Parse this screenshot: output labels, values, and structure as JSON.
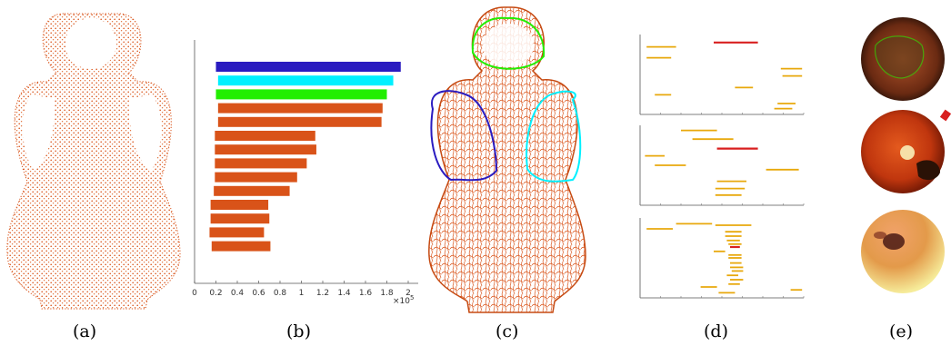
{
  "figure": {
    "captions": [
      "(a)",
      "(b)",
      "(c)",
      "(d)",
      "(e)"
    ]
  },
  "colors": {
    "accent_orange": "#d95319",
    "cluster_blue": "#2a1bc0",
    "cluster_cyan": "#00f0ff",
    "cluster_green": "#22ee00",
    "interval_yellow": "#e8a80c",
    "interval_red": "#d81f1f"
  },
  "chart_data": {
    "type": "bar",
    "orientation": "horizontal",
    "x_ticks": [
      "0",
      "0.2",
      "0.4",
      "0.6",
      "0.8",
      "1",
      "1.2",
      "1.4",
      "1.6",
      "1.8",
      "2"
    ],
    "x_multiplier": "×10",
    "x_multiplier_exp": "5",
    "xlim": [
      0,
      200000
    ],
    "bars": [
      {
        "start": 20000,
        "end": 193000,
        "color": "#2a1bc0"
      },
      {
        "start": 22000,
        "end": 186000,
        "color": "#00f0ff"
      },
      {
        "start": 20000,
        "end": 180000,
        "color": "#22ee00"
      },
      {
        "start": 22000,
        "end": 176000,
        "color": "#d95319"
      },
      {
        "start": 22000,
        "end": 175000,
        "color": "#d95319"
      },
      {
        "start": 19000,
        "end": 113000,
        "color": "#d95319"
      },
      {
        "start": 19000,
        "end": 114000,
        "color": "#d95319"
      },
      {
        "start": 19000,
        "end": 105000,
        "color": "#d95319"
      },
      {
        "start": 19000,
        "end": 96000,
        "color": "#d95319"
      },
      {
        "start": 18000,
        "end": 89000,
        "color": "#d95319"
      },
      {
        "start": 15000,
        "end": 69000,
        "color": "#d95319"
      },
      {
        "start": 15000,
        "end": 70000,
        "color": "#d95319"
      },
      {
        "start": 14000,
        "end": 65000,
        "color": "#d95319"
      },
      {
        "start": 16000,
        "end": 71000,
        "color": "#d95319"
      }
    ]
  },
  "panel_d": {
    "xlim": [
      0,
      1
    ],
    "plots": [
      {
        "intervals": [
          {
            "y": 0.06,
            "x0": 0.45,
            "x1": 0.72,
            "red": true
          },
          {
            "y": 0.12,
            "x0": 0.04,
            "x1": 0.22
          },
          {
            "y": 0.27,
            "x0": 0.04,
            "x1": 0.19
          },
          {
            "y": 0.42,
            "x0": 0.86,
            "x1": 0.99
          },
          {
            "y": 0.52,
            "x0": 0.87,
            "x1": 0.99
          },
          {
            "y": 0.68,
            "x0": 0.58,
            "x1": 0.69
          },
          {
            "y": 0.78,
            "x0": 0.09,
            "x1": 0.19
          },
          {
            "y": 0.9,
            "x0": 0.84,
            "x1": 0.95
          },
          {
            "y": 0.97,
            "x0": 0.82,
            "x1": 0.93
          }
        ]
      },
      {
        "intervals": [
          {
            "y": 0.02,
            "x0": 0.25,
            "x1": 0.47
          },
          {
            "y": 0.14,
            "x0": 0.32,
            "x1": 0.57
          },
          {
            "y": 0.27,
            "x0": 0.47,
            "x1": 0.72,
            "red": true
          },
          {
            "y": 0.37,
            "x0": 0.03,
            "x1": 0.15
          },
          {
            "y": 0.5,
            "x0": 0.09,
            "x1": 0.28
          },
          {
            "y": 0.56,
            "x0": 0.77,
            "x1": 0.97
          },
          {
            "y": 0.72,
            "x0": 0.47,
            "x1": 0.65
          },
          {
            "y": 0.82,
            "x0": 0.46,
            "x1": 0.64
          },
          {
            "y": 0.91,
            "x0": 0.46,
            "x1": 0.62
          }
        ]
      },
      {
        "intervals": [
          {
            "y": 0.03,
            "x0": 0.22,
            "x1": 0.44
          },
          {
            "y": 0.05,
            "x0": 0.46,
            "x1": 0.68
          },
          {
            "y": 0.1,
            "x0": 0.04,
            "x1": 0.2
          },
          {
            "y": 0.14,
            "x0": 0.52,
            "x1": 0.62
          },
          {
            "y": 0.2,
            "x0": 0.52,
            "x1": 0.62
          },
          {
            "y": 0.26,
            "x0": 0.53,
            "x1": 0.61
          },
          {
            "y": 0.31,
            "x0": 0.54,
            "x1": 0.62
          },
          {
            "y": 0.35,
            "x0": 0.55,
            "x1": 0.61,
            "red": true
          },
          {
            "y": 0.41,
            "x0": 0.45,
            "x1": 0.52
          },
          {
            "y": 0.46,
            "x0": 0.54,
            "x1": 0.62
          },
          {
            "y": 0.5,
            "x0": 0.54,
            "x1": 0.62
          },
          {
            "y": 0.57,
            "x0": 0.55,
            "x1": 0.62
          },
          {
            "y": 0.63,
            "x0": 0.55,
            "x1": 0.63
          },
          {
            "y": 0.68,
            "x0": 0.56,
            "x1": 0.63
          },
          {
            "y": 0.74,
            "x0": 0.53,
            "x1": 0.6
          },
          {
            "y": 0.8,
            "x0": 0.55,
            "x1": 0.63
          },
          {
            "y": 0.86,
            "x0": 0.54,
            "x1": 0.61
          },
          {
            "y": 0.9,
            "x0": 0.37,
            "x1": 0.47
          },
          {
            "y": 0.94,
            "x0": 0.92,
            "x1": 0.99
          },
          {
            "y": 0.98,
            "x0": 0.48,
            "x1": 0.58
          }
        ]
      }
    ]
  }
}
